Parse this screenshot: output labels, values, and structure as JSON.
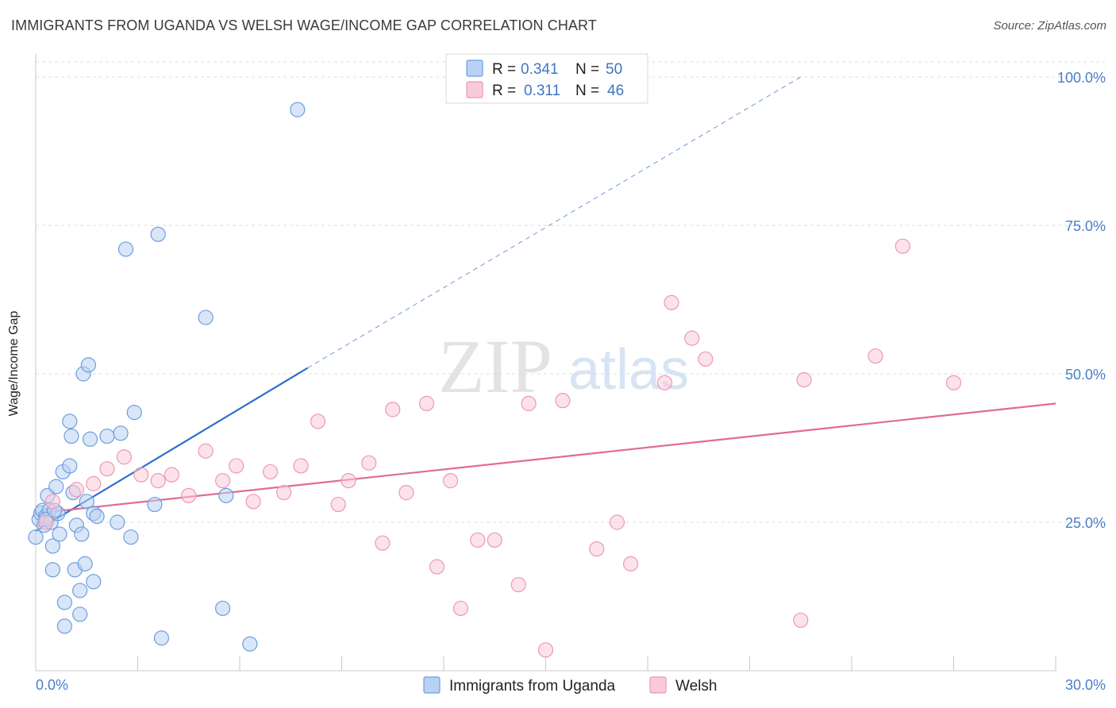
{
  "chart_data": {
    "type": "scatter",
    "title": "IMMIGRANTS FROM UGANDA VS WELSH WAGE/INCOME GAP CORRELATION CHART",
    "source": "Source: ZipAtlas.com",
    "xlabel": "",
    "ylabel": "Wage/Income Gap",
    "xlim": [
      0,
      30
    ],
    "ylim": [
      0,
      100
    ],
    "x_tick_labels": [
      "0.0%",
      "30.0%"
    ],
    "y_tick_labels": [
      "25.0%",
      "50.0%",
      "75.0%",
      "100.0%"
    ],
    "y_ticks": [
      25,
      50,
      75,
      100
    ],
    "grid": true,
    "legend_position": "top-center",
    "watermark": {
      "zip": "ZIP",
      "atlas": "atlas"
    },
    "legend": {
      "r_label": "R =",
      "n_label": "N =",
      "entries": [
        {
          "r": "0.341",
          "n": "50"
        },
        {
          "r": "0.311",
          "n": "46"
        }
      ]
    },
    "series": [
      {
        "name": "Immigrants from Uganda",
        "color": "#6d9ee0",
        "fill": "#b9d2f3",
        "trend": {
          "x": [
            0,
            8
          ],
          "y": [
            23.5,
            51
          ],
          "extend_to": [
            22.5,
            100
          ],
          "color": "#2f6fc7"
        },
        "points": [
          [
            0.0,
            22.5
          ],
          [
            0.1,
            25.5
          ],
          [
            0.15,
            26.5
          ],
          [
            0.2,
            27
          ],
          [
            0.25,
            24.5
          ],
          [
            0.3,
            26
          ],
          [
            0.35,
            29.5
          ],
          [
            0.4,
            27
          ],
          [
            0.45,
            25
          ],
          [
            0.5,
            21
          ],
          [
            0.5,
            17
          ],
          [
            0.6,
            31
          ],
          [
            0.65,
            26.5
          ],
          [
            0.7,
            23
          ],
          [
            0.8,
            33.5
          ],
          [
            0.85,
            11.5
          ],
          [
            0.85,
            7.5
          ],
          [
            1.0,
            42
          ],
          [
            1.0,
            34.5
          ],
          [
            1.05,
            39.5
          ],
          [
            1.1,
            30
          ],
          [
            1.15,
            17
          ],
          [
            1.2,
            24.5
          ],
          [
            1.3,
            13.5
          ],
          [
            1.3,
            9.5
          ],
          [
            1.35,
            23
          ],
          [
            1.4,
            50
          ],
          [
            1.45,
            18
          ],
          [
            1.5,
            28.5
          ],
          [
            1.55,
            51.5
          ],
          [
            1.6,
            39
          ],
          [
            1.7,
            26.5
          ],
          [
            1.7,
            15
          ],
          [
            1.8,
            26
          ],
          [
            2.1,
            39.5
          ],
          [
            2.4,
            25
          ],
          [
            2.5,
            40
          ],
          [
            2.65,
            71
          ],
          [
            2.8,
            22.5
          ],
          [
            2.9,
            43.5
          ],
          [
            3.5,
            28
          ],
          [
            3.6,
            73.5
          ],
          [
            3.7,
            5.5
          ],
          [
            5.0,
            59.5
          ],
          [
            5.5,
            10.5
          ],
          [
            5.6,
            29.5
          ],
          [
            6.3,
            4.5
          ],
          [
            7.7,
            94.5
          ],
          [
            0.3,
            25.5
          ],
          [
            0.55,
            27
          ]
        ]
      },
      {
        "name": "Welsh",
        "color": "#ee98b3",
        "fill": "#f9cbd9",
        "trend": {
          "x": [
            0,
            30
          ],
          "y": [
            26.5,
            45
          ],
          "color": "#e06b96"
        },
        "points": [
          [
            0.3,
            25
          ],
          [
            0.5,
            28.5
          ],
          [
            1.2,
            30.5
          ],
          [
            1.7,
            31.5
          ],
          [
            2.1,
            34
          ],
          [
            2.6,
            36
          ],
          [
            3.1,
            33
          ],
          [
            3.6,
            32
          ],
          [
            4.0,
            33
          ],
          [
            4.5,
            29.5
          ],
          [
            5.0,
            37
          ],
          [
            5.5,
            32
          ],
          [
            5.9,
            34.5
          ],
          [
            6.4,
            28.5
          ],
          [
            6.9,
            33.5
          ],
          [
            7.3,
            30
          ],
          [
            7.8,
            34.5
          ],
          [
            8.3,
            42
          ],
          [
            8.9,
            28
          ],
          [
            9.2,
            32
          ],
          [
            9.8,
            35
          ],
          [
            10.2,
            21.5
          ],
          [
            10.5,
            44
          ],
          [
            10.9,
            30
          ],
          [
            11.5,
            45
          ],
          [
            11.8,
            17.5
          ],
          [
            12.2,
            32
          ],
          [
            12.5,
            10.5
          ],
          [
            13.0,
            22
          ],
          [
            13.5,
            22
          ],
          [
            14.2,
            14.5
          ],
          [
            14.5,
            45
          ],
          [
            15.0,
            3.5
          ],
          [
            15.5,
            45.5
          ],
          [
            16.5,
            20.5
          ],
          [
            17.1,
            25
          ],
          [
            17.5,
            18
          ],
          [
            18.5,
            48.5
          ],
          [
            18.7,
            62
          ],
          [
            19.3,
            56
          ],
          [
            19.7,
            52.5
          ],
          [
            22.5,
            8.5
          ],
          [
            22.6,
            49
          ],
          [
            24.7,
            53
          ],
          [
            25.5,
            71.5
          ],
          [
            27.0,
            48.5
          ]
        ]
      }
    ],
    "bottom_legend": [
      "Immigrants from Uganda",
      "Welsh"
    ]
  }
}
